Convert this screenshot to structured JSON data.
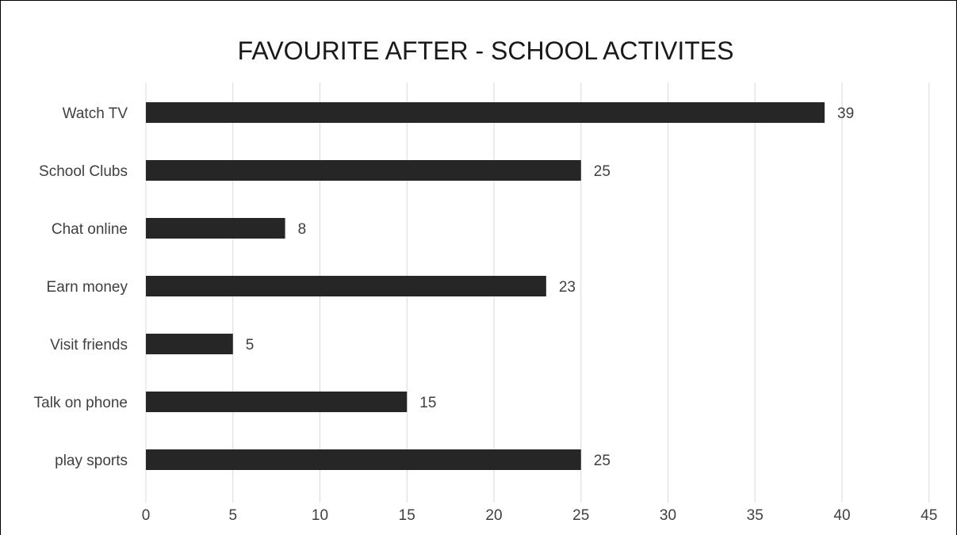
{
  "chart_data": {
    "type": "bar",
    "orientation": "horizontal",
    "title": "FAVOURITE AFTER - SCHOOL ACTIVITES",
    "categories": [
      "Watch TV",
      "School Clubs",
      "Chat online",
      "Earn money",
      "Visit friends",
      "Talk on phone",
      "play sports"
    ],
    "values": [
      39,
      25,
      8,
      23,
      5,
      15,
      25
    ],
    "xlim": [
      0,
      45
    ],
    "xticks": [
      0,
      5,
      10,
      15,
      20,
      25,
      30,
      35,
      40,
      45
    ],
    "xlabel": "",
    "ylabel": "",
    "grid": "vertical",
    "legend": "none",
    "bar_color": "#262626",
    "grid_color": "#d9d9d9",
    "text_color": "#404040"
  }
}
